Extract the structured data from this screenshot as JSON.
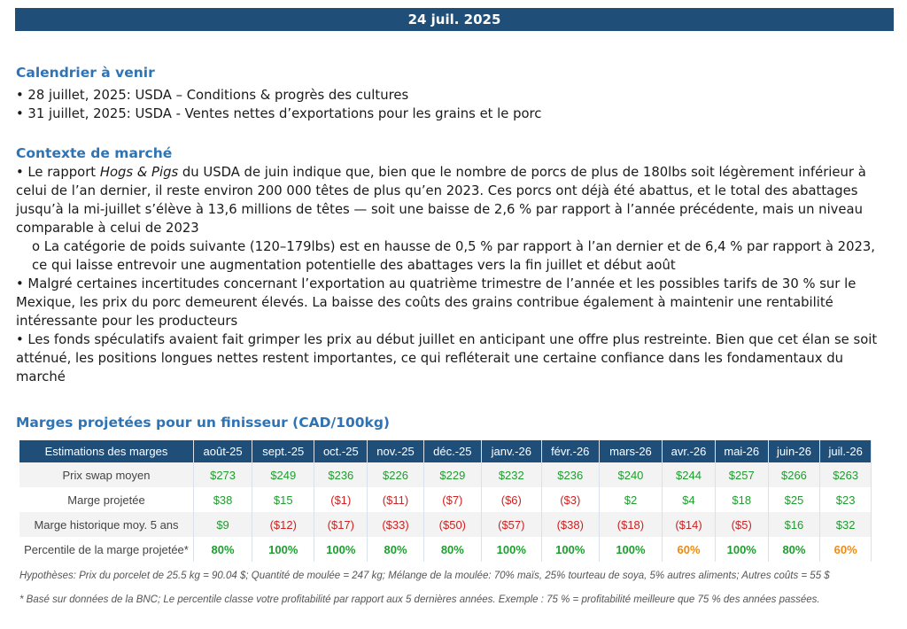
{
  "date": "24 juil. 2025",
  "calendar": {
    "heading": "Calendrier à venir",
    "items": [
      "• 28 juillet, 2025: USDA – Conditions & progrès des cultures",
      "• 31 juillet, 2025: USDA - Ventes nettes d’exportations pour les grains et le porc"
    ]
  },
  "context": {
    "heading": "Contexte de marché",
    "p1_prefix": "• Le rapport ",
    "p1_em": "Hogs & Pigs",
    "p1_suffix": " du USDA de juin indique que, bien que le nombre de porcs de plus de 180lbs soit légèrement inférieur à celui de l’an dernier, il reste environ 200 000 têtes de plus qu’en 2023. Ces porcs ont déjà été abattus, et le total des abattages jusqu’à la mi-juillet s’élève à 13,6 millions de têtes — soit une baisse de 2,6 % par rapport à l’année précédente, mais un niveau comparable à celui de 2023",
    "p2": "o La catégorie de poids suivante (120–179lbs) est en hausse de 0,5 % par rapport à l’an dernier et de 6,4 % par rapport à 2023, ce qui laisse entrevoir une augmentation potentielle des abattages vers la fin juillet et début août",
    "p3": "• Malgré certaines incertitudes concernant l’exportation au quatrième trimestre de l’année et les possibles tarifs de 30 % sur le Mexique, les prix du porc demeurent élevés. La baisse des coûts des grains contribue également à maintenir une rentabilité intéressante pour les producteurs",
    "p4": "• Les fonds spéculatifs avaient fait grimper les prix au début juillet en anticipant une offre plus restreinte. Bien que cet élan se soit atténué, les positions longues nettes restent importantes, ce qui refléterait une certaine confiance dans les fondamentaux du marché"
  },
  "margins": {
    "heading": "Marges projetées pour un finisseur (CAD/100kg)",
    "header_label": "Estimations des marges",
    "months": [
      "août-25",
      "sept.-25",
      "oct.-25",
      "nov.-25",
      "déc.-25",
      "janv.-26",
      "févr.-26",
      "mars-26",
      "avr.-26",
      "mai-26",
      "juin-26",
      "juil.-26"
    ],
    "rows": [
      {
        "label": "Prix swap moyen",
        "cells": [
          {
            "v": "$273",
            "c": "g"
          },
          {
            "v": "$249",
            "c": "g"
          },
          {
            "v": "$236",
            "c": "g"
          },
          {
            "v": "$226",
            "c": "g"
          },
          {
            "v": "$229",
            "c": "g"
          },
          {
            "v": "$232",
            "c": "g"
          },
          {
            "v": "$236",
            "c": "g"
          },
          {
            "v": "$240",
            "c": "g"
          },
          {
            "v": "$244",
            "c": "g"
          },
          {
            "v": "$257",
            "c": "g"
          },
          {
            "v": "$266",
            "c": "g"
          },
          {
            "v": "$263",
            "c": "g"
          }
        ]
      },
      {
        "label": "Marge projetée",
        "cells": [
          {
            "v": "$38",
            "c": "g"
          },
          {
            "v": "$15",
            "c": "g"
          },
          {
            "v": "($1)",
            "c": "r"
          },
          {
            "v": "($11)",
            "c": "r"
          },
          {
            "v": "($7)",
            "c": "r"
          },
          {
            "v": "($6)",
            "c": "r"
          },
          {
            "v": "($3)",
            "c": "r"
          },
          {
            "v": "$2",
            "c": "g"
          },
          {
            "v": "$4",
            "c": "g"
          },
          {
            "v": "$18",
            "c": "g"
          },
          {
            "v": "$25",
            "c": "g"
          },
          {
            "v": "$23",
            "c": "g"
          }
        ]
      },
      {
        "label": "Marge historique moy. 5 ans",
        "cells": [
          {
            "v": "$9",
            "c": "g"
          },
          {
            "v": "($12)",
            "c": "r"
          },
          {
            "v": "($17)",
            "c": "r"
          },
          {
            "v": "($33)",
            "c": "r"
          },
          {
            "v": "($50)",
            "c": "r"
          },
          {
            "v": "($57)",
            "c": "r"
          },
          {
            "v": "($38)",
            "c": "r"
          },
          {
            "v": "($18)",
            "c": "r"
          },
          {
            "v": "($14)",
            "c": "r"
          },
          {
            "v": "($5)",
            "c": "r"
          },
          {
            "v": "$16",
            "c": "g"
          },
          {
            "v": "$32",
            "c": "g"
          }
        ]
      },
      {
        "label": "Percentile de la marge projetée*",
        "cells": [
          {
            "v": "80%",
            "c": "g b"
          },
          {
            "v": "100%",
            "c": "g b"
          },
          {
            "v": "100%",
            "c": "g b"
          },
          {
            "v": "80%",
            "c": "g b"
          },
          {
            "v": "80%",
            "c": "g b"
          },
          {
            "v": "100%",
            "c": "g b"
          },
          {
            "v": "100%",
            "c": "g b"
          },
          {
            "v": "100%",
            "c": "g b"
          },
          {
            "v": "60%",
            "c": "o b"
          },
          {
            "v": "100%",
            "c": "g b"
          },
          {
            "v": "80%",
            "c": "g b"
          },
          {
            "v": "60%",
            "c": "o b"
          }
        ]
      }
    ],
    "hypotheses": "Hypothèses: Prix du porcelet de 25.5 kg = 90.04 $; Quantité de moulée = 247 kg; Mélange de la moulée: 70% maïs, 25% tourteau de soya, 5% autres aliments; Autres coûts = 55 $",
    "footnote": "* Basé sur données de la BNC; Le percentile classe votre profitabilité par rapport aux 5 dernières années. Exemple : 75 % = profitabilité meilleure que 75 % des années passées."
  }
}
